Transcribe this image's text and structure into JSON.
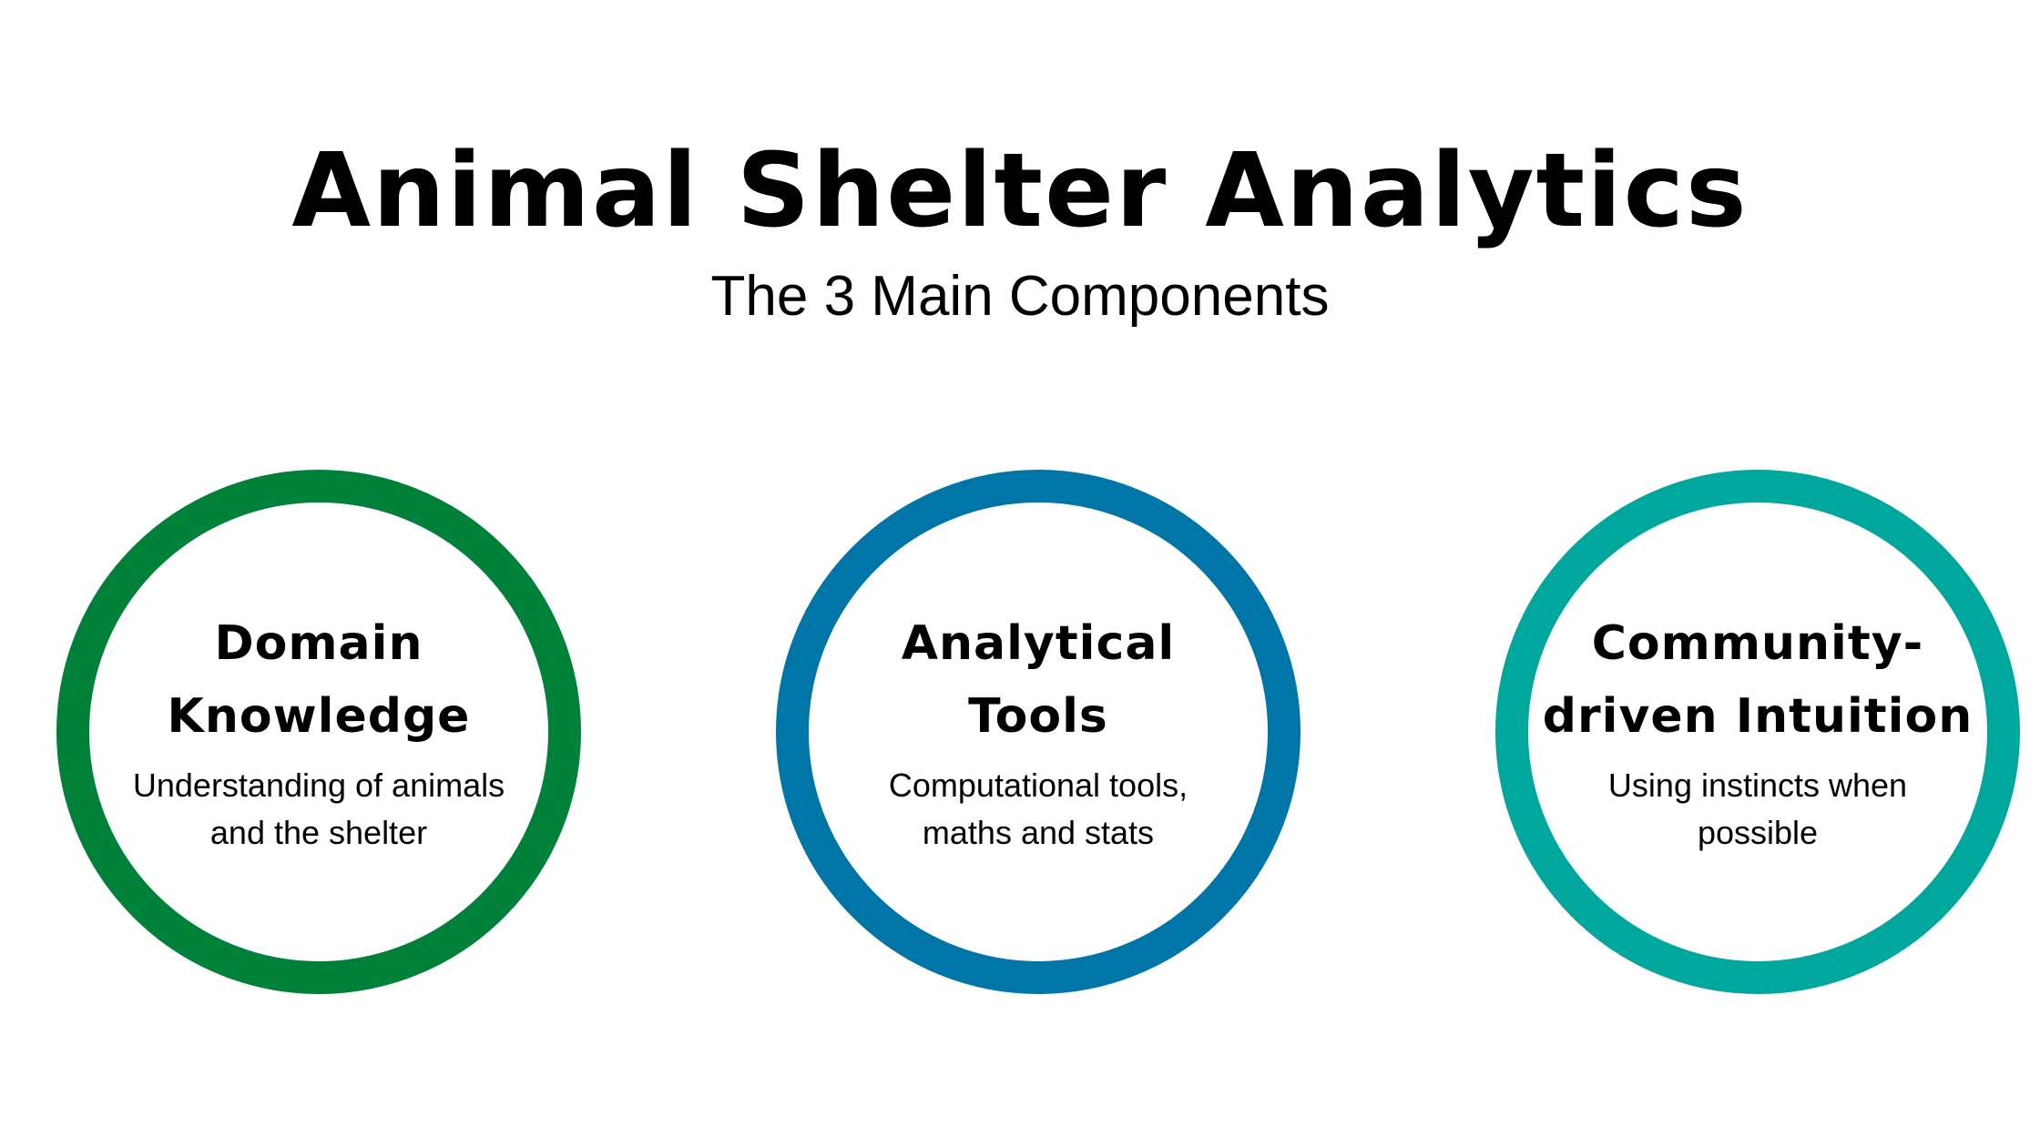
{
  "title": "Animal Shelter Analytics",
  "subtitle": "The 3 Main Components",
  "components": [
    {
      "heading_line1": "Domain",
      "heading_line2": "Knowledge",
      "desc_line1": "Understanding of animals",
      "desc_line2": "and the shelter",
      "color": "#00813a"
    },
    {
      "heading_line1": "Analytical",
      "heading_line2": "Tools",
      "desc_line1": "Computational tools,",
      "desc_line2": "maths and stats",
      "color": "#0075a8"
    },
    {
      "heading_line1": "Community-",
      "heading_line2": "driven Intuition",
      "desc_line1": "Using instincts when",
      "desc_line2": "possible",
      "color": "#00a79d"
    }
  ]
}
